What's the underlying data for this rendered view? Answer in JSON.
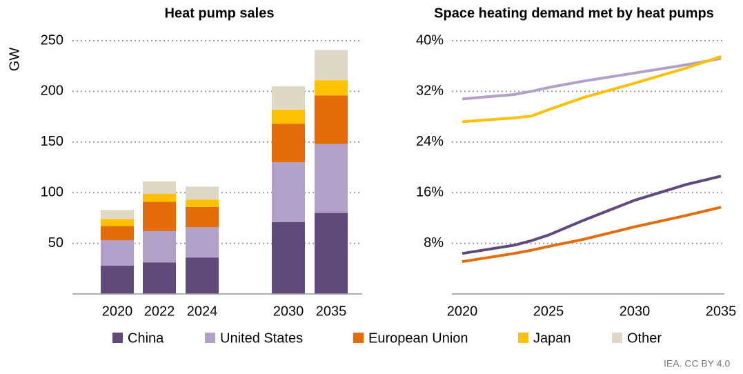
{
  "chart_data": [
    {
      "type": "bar",
      "stacked": true,
      "title": "Heat pump sales",
      "ylabel": "GW",
      "categories": [
        "2020",
        "2022",
        "2024",
        "2030",
        "2035"
      ],
      "series": [
        {
          "name": "China",
          "color": "#604a7b",
          "values": [
            28,
            31,
            36,
            71,
            80
          ]
        },
        {
          "name": "United States",
          "color": "#b1a0c7",
          "values": [
            25,
            31,
            30,
            59,
            68
          ]
        },
        {
          "name": "European Union",
          "color": "#e46c0a",
          "values": [
            14,
            29,
            20,
            38,
            48
          ]
        },
        {
          "name": "Japan",
          "color": "#ffc000",
          "values": [
            7,
            8,
            7,
            14,
            15
          ]
        },
        {
          "name": "Other",
          "color": "#ddd9c4",
          "values": [
            9,
            12,
            13,
            23,
            30
          ]
        }
      ],
      "ylim": [
        0,
        250
      ],
      "yticks": [
        50,
        100,
        150,
        200,
        250
      ],
      "grid": true
    },
    {
      "type": "line",
      "title": "Space heating demand met by heat pumps",
      "x": [
        2020,
        2023,
        2024,
        2025,
        2027,
        2030,
        2033,
        2035
      ],
      "series": [
        {
          "color": "#b1a0c7",
          "values": [
            30.8,
            31.5,
            32.0,
            32.6,
            33.6,
            34.9,
            36.2,
            37.2
          ]
        },
        {
          "color": "#ffc000",
          "values": [
            27.2,
            27.8,
            28.1,
            29.1,
            31.0,
            33.3,
            35.7,
            37.5
          ]
        },
        {
          "color": "#604a7b",
          "values": [
            6.4,
            7.7,
            8.4,
            9.3,
            11.6,
            14.8,
            17.3,
            18.6
          ]
        },
        {
          "color": "#e46c0a",
          "values": [
            5.1,
            6.4,
            6.9,
            7.5,
            8.6,
            10.6,
            12.4,
            13.7
          ]
        }
      ],
      "xlim": [
        2020,
        2035
      ],
      "xticks": [
        2020,
        2025,
        2030,
        2035
      ],
      "ylim": [
        0,
        40
      ],
      "yticks": [
        {
          "value": 8,
          "label": "8%"
        },
        {
          "value": 16,
          "label": "16%"
        },
        {
          "value": 24,
          "label": "24%"
        },
        {
          "value": 32,
          "label": "32%"
        },
        {
          "value": 40,
          "label": "40%"
        }
      ],
      "grid": true
    }
  ],
  "source": "IEA. CC BY 4.0"
}
